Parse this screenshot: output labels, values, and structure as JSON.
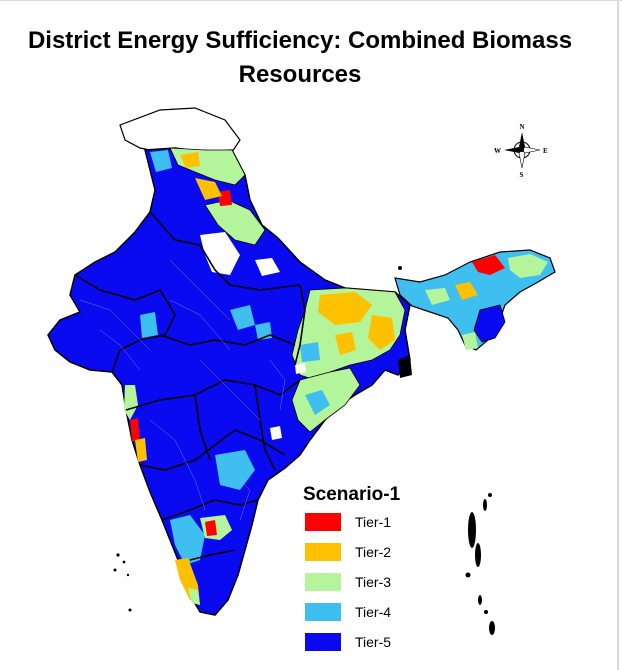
{
  "title": "District Energy Sufficiency: Combined Biomass Resources",
  "legend": {
    "title": "Scenario-1",
    "items": [
      {
        "label": "Tier-1",
        "color": "#ff0000"
      },
      {
        "label": "Tier-2",
        "color": "#ffc000"
      },
      {
        "label": "Tier-3",
        "color": "#b4f59c"
      },
      {
        "label": "Tier-4",
        "color": "#3fbef0"
      },
      {
        "label": "Tier-5",
        "color": "#0a0af0"
      }
    ]
  },
  "compass": {
    "n": "N",
    "s": "S",
    "e": "E",
    "w": "W",
    "icon": "compass-rose-icon"
  },
  "colors": {
    "tier1": "#ff0000",
    "tier2": "#ffc000",
    "tier3": "#b4f59c",
    "tier4": "#3fbef0",
    "tier5": "#0a0af0",
    "nodata": "#ffffff",
    "border": "#000000"
  }
}
